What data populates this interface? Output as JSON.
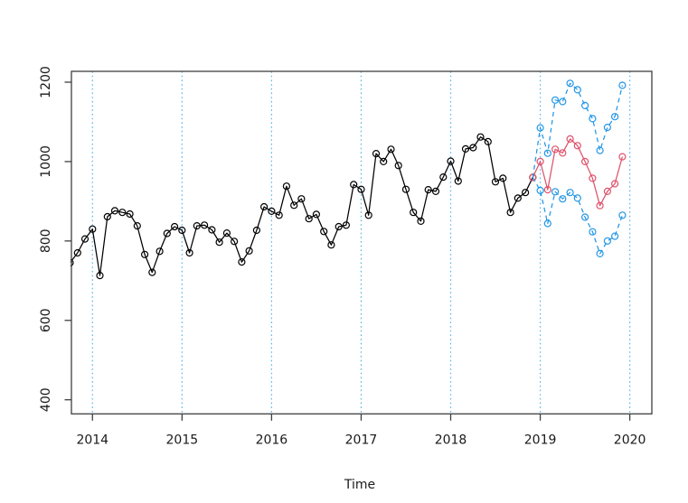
{
  "chart_data": {
    "type": "line",
    "title": "",
    "xlabel": "Time",
    "ylabel": "",
    "x_ticks": [
      2014,
      2015,
      2016,
      2017,
      2018,
      2019,
      2020
    ],
    "y_ticks": [
      400,
      600,
      800,
      1000,
      1200
    ],
    "xlim": [
      2013.765,
      2020.246
    ],
    "ylim": [
      364.5,
      1227.3
    ],
    "grid": {
      "vertical_lines_at_years": [
        2014,
        2015,
        2016,
        2017,
        2018,
        2019,
        2020
      ],
      "style": "dotted",
      "color": "#5ab5ea"
    },
    "legend": "none",
    "frequency": "monthly",
    "forecast_anchor": {
      "t": 2018.9167,
      "v": 960
    },
    "series": [
      {
        "name": "observed",
        "color": "#000000",
        "style": "solid",
        "marker": "open-circle",
        "connect_from_anchor": false,
        "marker_at_anchor": false,
        "x_start": 2013.75,
        "x_step": 0.0833333,
        "values": [
          745,
          770,
          805,
          830,
          713,
          861,
          876,
          872,
          868,
          838,
          766,
          721,
          774,
          819,
          836,
          827,
          770,
          838,
          840,
          828,
          797,
          820,
          799,
          747,
          775,
          827,
          886,
          875,
          865,
          938,
          890,
          906,
          856,
          867,
          824,
          790,
          836,
          840,
          942,
          930,
          865,
          1020,
          1000,
          1031,
          990,
          930,
          872,
          850,
          929,
          925,
          961,
          1001,
          951,
          1032,
          1035,
          1062,
          1050,
          949,
          958,
          872,
          908,
          922,
          960
        ]
      },
      {
        "name": "forecast-mean",
        "color": "#DF536B",
        "style": "solid",
        "marker": "open-circle",
        "connect_from_anchor": true,
        "marker_at_anchor": true,
        "x_start": 2019.0,
        "x_step": 0.0833333,
        "values": [
          1000,
          929,
          1031,
          1022,
          1057,
          1040,
          1000,
          958,
          889,
          925,
          944,
          1012
        ]
      },
      {
        "name": "forecast-upper-interval",
        "color": "#2297E6",
        "style": "dashed",
        "marker": "open-circle",
        "connect_from_anchor": true,
        "marker_at_anchor": false,
        "x_start": 2019.0,
        "x_step": 0.0833333,
        "values": [
          1085,
          1021,
          1155,
          1151,
          1197,
          1181,
          1141,
          1108,
          1028,
          1086,
          1113,
          1192
        ]
      },
      {
        "name": "forecast-lower-interval",
        "color": "#2297E6",
        "style": "dashed",
        "marker": "open-circle",
        "connect_from_anchor": true,
        "marker_at_anchor": false,
        "x_start": 2019.0,
        "x_step": 0.0833333,
        "values": [
          927,
          844,
          924,
          906,
          922,
          908,
          860,
          823,
          768,
          800,
          812,
          865
        ]
      }
    ]
  },
  "colors": {
    "observed": "#000000",
    "forecast_mean": "#DF536B",
    "forecast_interval": "#2297E6",
    "year_gridline": "#5ab5ea",
    "frame": "#3f3f3f",
    "text": "#1a1a1a",
    "background": "#ffffff"
  },
  "labels": {
    "x_axis_title": "Time",
    "x_tick_labels": [
      "2014",
      "2015",
      "2016",
      "2017",
      "2018",
      "2019",
      "2020"
    ],
    "y_tick_labels": [
      "400",
      "600",
      "800",
      "1000",
      "1200"
    ]
  }
}
